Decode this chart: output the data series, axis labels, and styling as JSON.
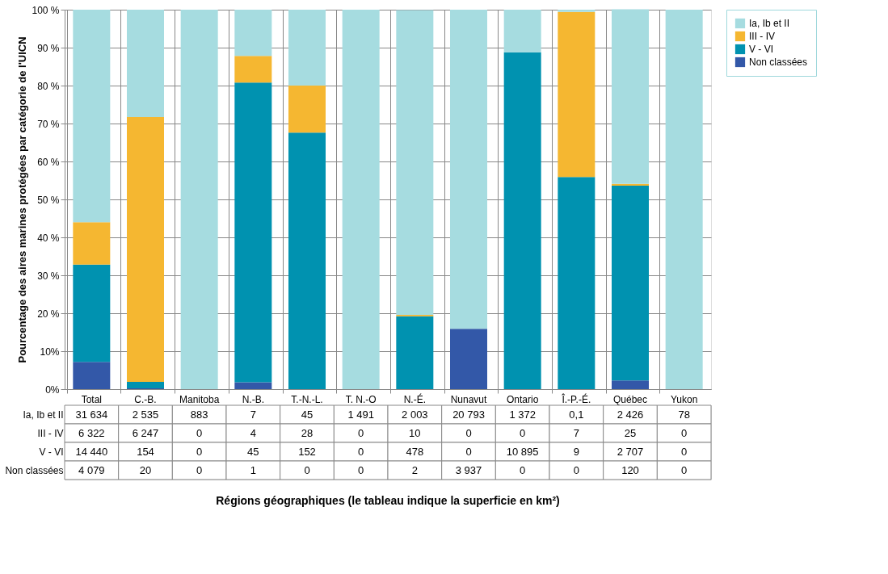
{
  "chart_data": {
    "type": "bar",
    "stacked": true,
    "ylabel": "Pourcentage des aires marines protégées par catégorie de l'UICN",
    "categories": [
      "Total",
      "C.-B.",
      "Manitoba",
      "N.-B.",
      "T.-N.-L.",
      "T. N.-O",
      "N.-É.",
      "Nunavut",
      "Ontario",
      "Î.-P.-É.",
      "Québec",
      "Yukon"
    ],
    "series": [
      {
        "name": "Non classées",
        "color": "#3358a8",
        "values": [
          7.2,
          0.2,
          0,
          1.8,
          0,
          0,
          null,
          15.9,
          0,
          0,
          2.3,
          0
        ]
      },
      {
        "name": "V - VI",
        "color": "#0092b0",
        "values": [
          25.6,
          1.7,
          0,
          79.0,
          67.6,
          0,
          19.2,
          0,
          88.8,
          55.9,
          51.3,
          0
        ]
      },
      {
        "name": "III - IV",
        "color": "#f5b731",
        "values": [
          11.2,
          69.8,
          0,
          7.0,
          12.4,
          0,
          0.4,
          0,
          0,
          43.5,
          0.5,
          0
        ]
      },
      {
        "name": "Ia, Ib et II",
        "color": "#a6dce0",
        "values": [
          56.0,
          28.3,
          100,
          12.2,
          20.0,
          100,
          80.3,
          84.1,
          11.2,
          0.6,
          46.0,
          100
        ]
      }
    ],
    "annotations": [
      "31 634",
      "2 535",
      "883",
      "7",
      "45",
      "1 491",
      "2 003",
      "20 793",
      "1 372",
      "0,1",
      "2 426",
      "78",
      "6 322",
      "6 247",
      "0",
      "4",
      "28",
      "0",
      "10",
      "0",
      "0",
      "7",
      "25",
      "0",
      "14 440",
      "154",
      "0",
      "45",
      "152",
      "0",
      "478",
      "0",
      "10 895",
      "9",
      "2 707",
      "0",
      "4 079",
      "20",
      "0",
      "1",
      "0",
      "0",
      "2",
      "3 937",
      "0",
      "0",
      "120",
      "0",
      "Régions géographiques (le tableau indique la superficie en km²)"
    ],
    "ylim": [
      0,
      100
    ],
    "yticks": [
      {
        "value": 0,
        "label": "0%"
      },
      {
        "value": 10,
        "label": "10%"
      },
      {
        "value": 20,
        "label": "20 %"
      },
      {
        "value": 30,
        "label": "30 %"
      },
      {
        "value": 40,
        "label": "40 %"
      },
      {
        "value": 50,
        "label": "50 %"
      },
      {
        "value": 60,
        "label": "60 %"
      },
      {
        "value": 70,
        "label": "70 %"
      },
      {
        "value": 80,
        "label": "80 %"
      },
      {
        "value": 90,
        "label": "90 %"
      },
      {
        "value": 100,
        "label": "100 %"
      }
    ],
    "grid": "y",
    "legend": "right"
  }
}
